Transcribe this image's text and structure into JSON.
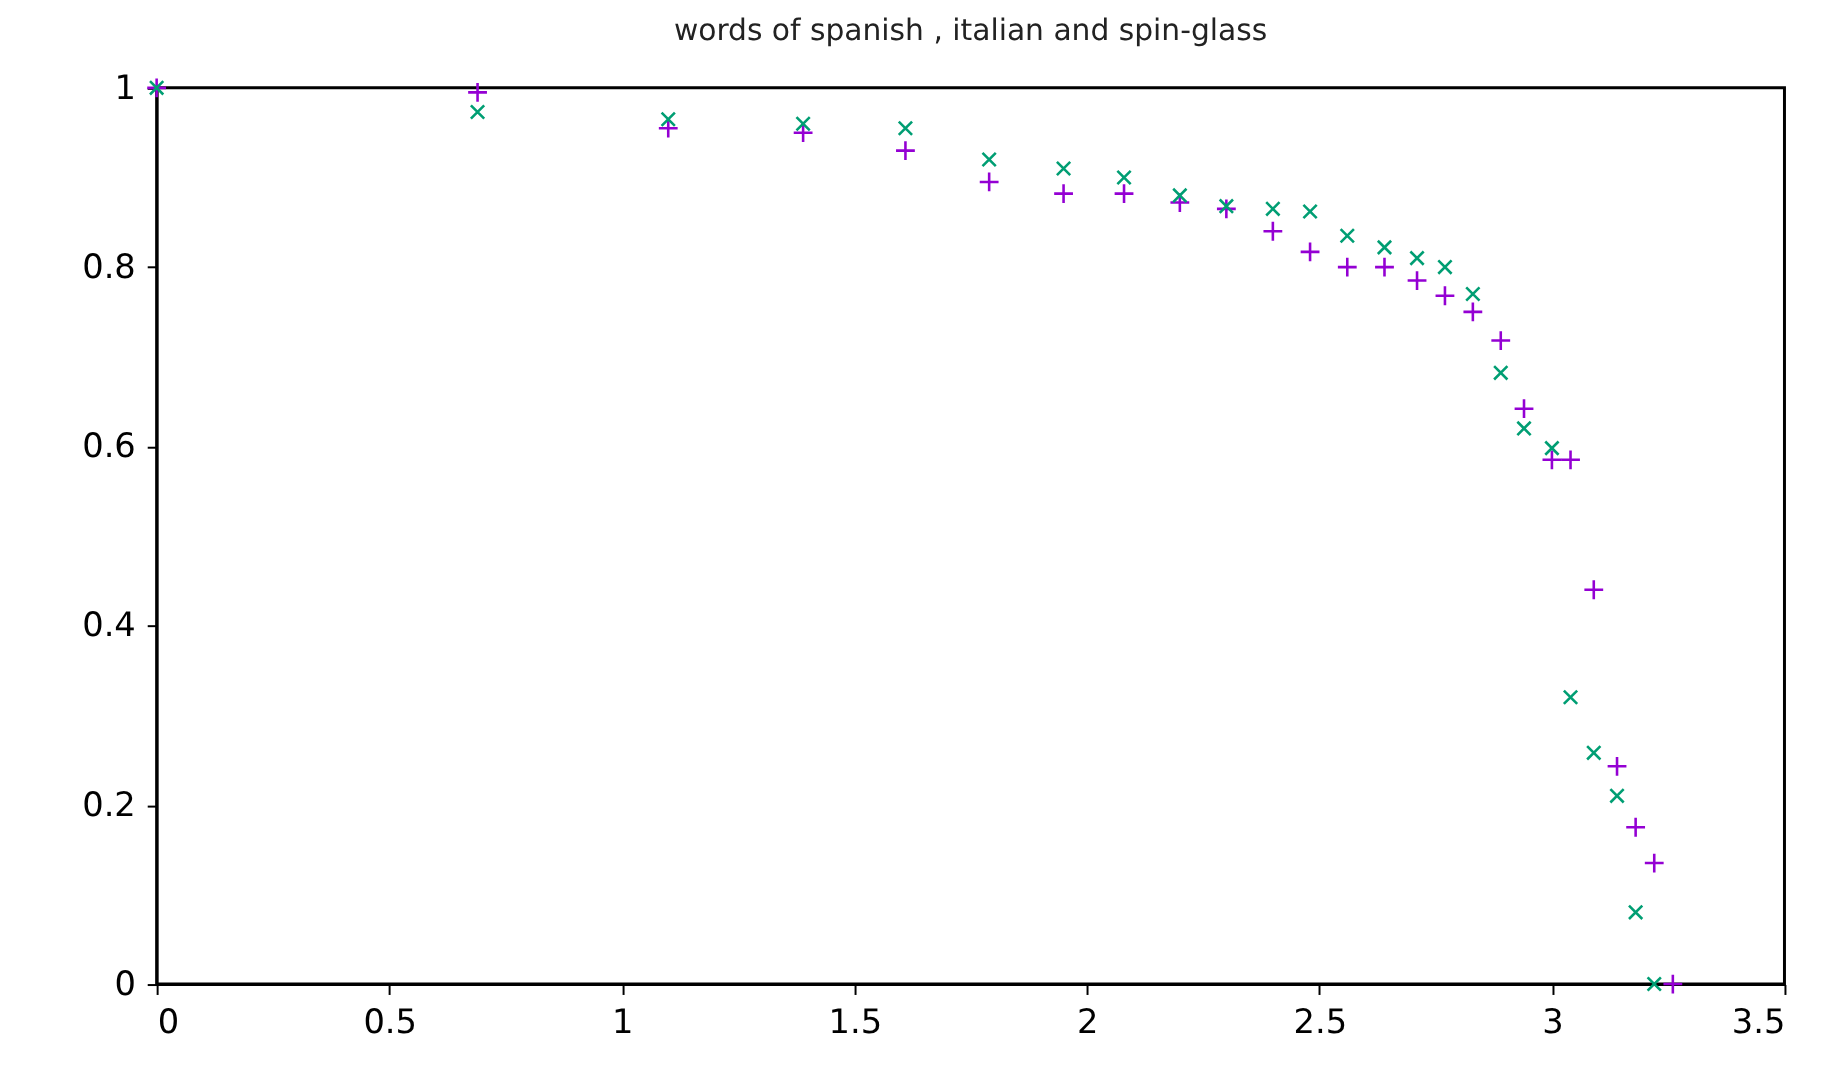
{
  "chart_data": {
    "type": "scatter",
    "title": "words of spanish , italian and spin-glass",
    "xlim": [
      0,
      3.5
    ],
    "xticks": [
      0,
      0.5,
      1,
      1.5,
      2,
      2.5,
      3,
      3.5
    ],
    "ylim": [
      0,
      1
    ],
    "yticks": [
      0,
      0.2,
      0.4,
      0.6,
      0.8,
      1
    ],
    "grid": false,
    "marker": "cross",
    "series": [
      {
        "color": "#9400d3",
        "x": [
          0,
          0.69,
          1.1,
          1.39,
          1.61,
          1.79,
          1.95,
          2.08,
          2.2,
          2.3,
          2.4,
          2.48,
          2.56,
          2.64,
          2.71,
          2.77,
          2.83,
          2.89,
          2.94,
          3.0,
          3.04,
          3.09,
          3.14,
          3.18,
          3.22,
          3.26
        ],
        "values": [
          1,
          0.995,
          0.955,
          0.95,
          0.93,
          0.895,
          0.882,
          0.882,
          0.872,
          0.865,
          0.84,
          0.817,
          0.8,
          0.8,
          0.785,
          0.768,
          0.75,
          0.718,
          0.642,
          0.585,
          0.585,
          0.44,
          0.243,
          0.175,
          0.135,
          0
        ]
      },
      {
        "color": "#009e73",
        "x": [
          0,
          0.69,
          1.1,
          1.39,
          1.61,
          1.79,
          1.95,
          2.08,
          2.2,
          2.3,
          2.4,
          2.48,
          2.56,
          2.64,
          2.71,
          2.77,
          2.83,
          2.89,
          2.94,
          3.0,
          3.04,
          3.09,
          3.14,
          3.18,
          3.22
        ],
        "values": [
          1,
          0.973,
          0.965,
          0.96,
          0.955,
          0.92,
          0.91,
          0.9,
          0.88,
          0.868,
          0.865,
          0.862,
          0.835,
          0.822,
          0.81,
          0.8,
          0.77,
          0.682,
          0.62,
          0.598,
          0.32,
          0.258,
          0.21,
          0.08,
          0
        ]
      }
    ]
  }
}
